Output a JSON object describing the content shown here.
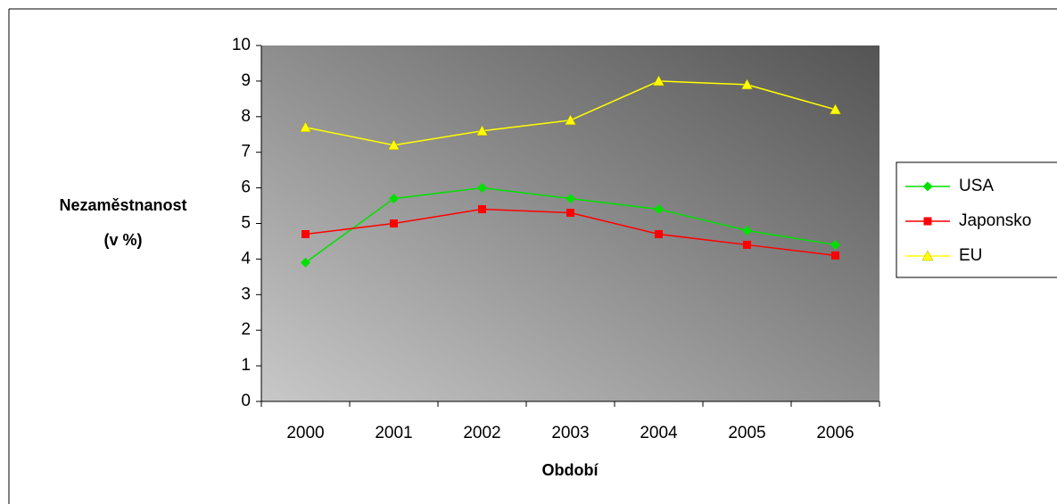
{
  "chart_data": {
    "type": "line",
    "ylabel": [
      "Nezaměstnanost",
      "(v %)"
    ],
    "xlabel": "Období",
    "categories": [
      "2000",
      "2001",
      "2002",
      "2003",
      "2004",
      "2005",
      "2006"
    ],
    "series": [
      {
        "name": "USA",
        "color": "#00e000",
        "marker": "diamond",
        "values": [
          3.9,
          5.7,
          6.0,
          5.7,
          5.4,
          4.8,
          4.4
        ]
      },
      {
        "name": "Japonsko",
        "color": "#ff0000",
        "marker": "square",
        "values": [
          4.7,
          5.0,
          5.4,
          5.3,
          4.7,
          4.4,
          4.1
        ]
      },
      {
        "name": "EU",
        "color": "#ffff00",
        "marker": "triangle",
        "values": [
          7.7,
          7.2,
          7.6,
          7.9,
          9.0,
          8.9,
          8.2
        ]
      }
    ],
    "ylim": [
      0,
      10
    ],
    "yticks": [
      0,
      1,
      2,
      3,
      4,
      5,
      6,
      7,
      8,
      9,
      10
    ],
    "legend": "right"
  }
}
